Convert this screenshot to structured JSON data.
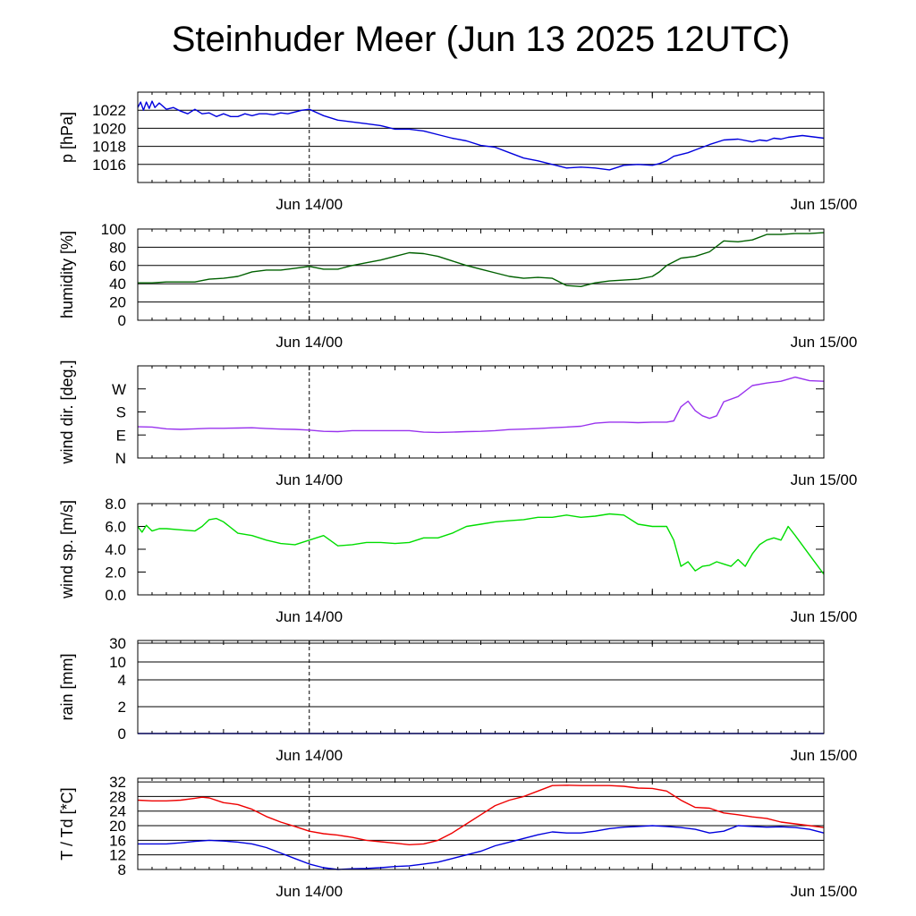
{
  "title": "Steinhuder Meer (Jun 13 2025 12UTC)",
  "chart_data": [
    {
      "type": "line",
      "ylabel": "p [hPa]",
      "ylim": [
        1014,
        1024
      ],
      "yticks": [
        1016,
        1018,
        1020,
        1022
      ],
      "ytick_labels": [
        "1016",
        "1018",
        "1020",
        "1022"
      ],
      "xtick_labels": [
        "Jun 14/00",
        "Jun 15/00"
      ],
      "grid": true,
      "series": [
        {
          "color": "#0000dd",
          "x": [
            0,
            0.2,
            0.4,
            0.6,
            0.8,
            1,
            1.2,
            1.5,
            2,
            2.5,
            3,
            3.5,
            4,
            4.5,
            5,
            5.5,
            6,
            6.5,
            7,
            7.5,
            8,
            8.5,
            9,
            9.5,
            10,
            10.5,
            11,
            11.5,
            12,
            13,
            14,
            15,
            16,
            17,
            18,
            19,
            20,
            21,
            22,
            23,
            24,
            25,
            26,
            27,
            28,
            29,
            30,
            31,
            32,
            33,
            34,
            35,
            36,
            36.5,
            37,
            37.5,
            38,
            38.5,
            39,
            40,
            41,
            42,
            43,
            43.5,
            44,
            44.5,
            45,
            45.5,
            46,
            46.5,
            47,
            47.5,
            48
          ],
          "y": [
            1022.3,
            1022.9,
            1022.0,
            1022.9,
            1022.2,
            1023.0,
            1022.3,
            1022.8,
            1022.1,
            1022.3,
            1021.9,
            1021.6,
            1022.1,
            1021.6,
            1021.7,
            1021.3,
            1021.6,
            1021.3,
            1021.3,
            1021.6,
            1021.4,
            1021.6,
            1021.6,
            1021.5,
            1021.7,
            1021.6,
            1021.8,
            1022.0,
            1022.1,
            1021.4,
            1020.9,
            1020.7,
            1020.5,
            1020.3,
            1019.9,
            1019.9,
            1019.7,
            1019.3,
            1018.9,
            1018.6,
            1018.1,
            1017.9,
            1017.3,
            1016.7,
            1016.4,
            1016.0,
            1015.6,
            1015.7,
            1015.6,
            1015.4,
            1015.9,
            1016.0,
            1015.9,
            1016.1,
            1016.4,
            1016.9,
            1017.1,
            1017.3,
            1017.6,
            1018.2,
            1018.7,
            1018.8,
            1018.5,
            1018.7,
            1018.6,
            1018.9,
            1018.8,
            1019.0,
            1019.1,
            1019.2,
            1019.1,
            1019.0,
            1018.9
          ]
        }
      ]
    },
    {
      "type": "line",
      "ylabel": "humidity [%]",
      "ylim": [
        0,
        100
      ],
      "yticks": [
        0,
        20,
        40,
        60,
        80,
        100
      ],
      "ytick_labels": [
        "0",
        "20",
        "40",
        "60",
        "80",
        "100"
      ],
      "xtick_labels": [
        "Jun 14/00",
        "Jun 15/00"
      ],
      "grid": true,
      "series": [
        {
          "color": "#006000",
          "x": [
            0,
            1,
            2,
            3,
            4,
            5,
            6,
            7,
            8,
            9,
            10,
            11,
            12,
            13,
            14,
            15,
            16,
            17,
            18,
            19,
            20,
            21,
            22,
            23,
            24,
            25,
            26,
            27,
            28,
            29,
            30,
            31,
            32,
            33,
            34,
            35,
            36,
            36.5,
            37,
            38,
            39,
            40,
            41,
            42,
            43,
            44,
            45,
            46,
            47,
            48
          ],
          "y": [
            41,
            41,
            42,
            42,
            42,
            45,
            46,
            48,
            53,
            55,
            55,
            57,
            59,
            56,
            56,
            60,
            63,
            66,
            70,
            74,
            73,
            70,
            65,
            60,
            56,
            52,
            48,
            46,
            47,
            46,
            38,
            37,
            41,
            43,
            44,
            45,
            48,
            53,
            60,
            68,
            70,
            75,
            87,
            86,
            88,
            94,
            94,
            95,
            95,
            96
          ]
        }
      ]
    },
    {
      "type": "line",
      "ylabel": "wind dir. [deg.]",
      "ylim": [
        0,
        360
      ],
      "yticks": [
        0,
        90,
        180,
        270
      ],
      "ytick_labels": [
        "N",
        "E",
        "S",
        "W"
      ],
      "xtick_labels": [
        "Jun 14/00",
        "Jun 15/00"
      ],
      "grid": false,
      "series": [
        {
          "color": "#9933ee",
          "x": [
            0,
            1,
            2,
            3,
            4,
            5,
            6,
            7,
            8,
            9,
            10,
            11,
            12,
            13,
            14,
            15,
            16,
            17,
            18,
            19,
            20,
            21,
            22,
            23,
            24,
            25,
            26,
            27,
            28,
            29,
            30,
            31,
            32,
            33,
            34,
            35,
            36,
            36.5,
            37,
            37.5,
            38,
            38.5,
            39,
            39.5,
            40,
            40.5,
            41,
            42,
            43,
            44,
            45,
            46,
            47,
            48
          ],
          "y": [
            122,
            121,
            114,
            112,
            114,
            116,
            116,
            117,
            118,
            115,
            113,
            112,
            109,
            104,
            103,
            107,
            107,
            107,
            107,
            107,
            101,
            100,
            101,
            103,
            104,
            107,
            111,
            113,
            115,
            118,
            121,
            124,
            136,
            140,
            140,
            138,
            140,
            140,
            140,
            145,
            200,
            222,
            185,
            165,
            155,
            165,
            220,
            240,
            283,
            293,
            300,
            316,
            302,
            300
          ]
        }
      ]
    },
    {
      "type": "line",
      "ylabel": "wind sp. [m/s]",
      "ylim": [
        0,
        8
      ],
      "yticks": [
        0,
        2,
        4,
        6,
        8
      ],
      "ytick_labels": [
        "0.0",
        "2.0",
        "4.0",
        "6.0",
        "8.0"
      ],
      "xtick_labels": [
        "Jun 14/00",
        "Jun 15/00"
      ],
      "grid": false,
      "series": [
        {
          "color": "#00dd00",
          "x": [
            0,
            0.3,
            0.6,
            1,
            1.5,
            2,
            3,
            4,
            4.5,
            5,
            5.5,
            6,
            7,
            8,
            9,
            10,
            11,
            12,
            13,
            14,
            15,
            16,
            17,
            18,
            19,
            20,
            21,
            22,
            23,
            24,
            25,
            26,
            27,
            28,
            29,
            30,
            31,
            32,
            33,
            34,
            35,
            36,
            37,
            37.5,
            38,
            38.5,
            39,
            39.5,
            40,
            40.5,
            41,
            41.5,
            42,
            42.5,
            43,
            43.5,
            44,
            44.5,
            45,
            45.5,
            46,
            47,
            48
          ],
          "y": [
            6.0,
            5.5,
            6.1,
            5.6,
            5.8,
            5.8,
            5.7,
            5.6,
            6.0,
            6.6,
            6.7,
            6.4,
            5.4,
            5.2,
            4.8,
            4.5,
            4.4,
            4.8,
            5.2,
            4.3,
            4.4,
            4.6,
            4.6,
            4.5,
            4.6,
            5.0,
            5.0,
            5.4,
            6.0,
            6.2,
            6.4,
            6.5,
            6.6,
            6.8,
            6.8,
            7.0,
            6.8,
            6.9,
            7.1,
            7.0,
            6.2,
            6.0,
            6.0,
            4.8,
            2.5,
            2.9,
            2.1,
            2.5,
            2.6,
            2.9,
            2.7,
            2.5,
            3.1,
            2.5,
            3.6,
            4.4,
            4.8,
            5.0,
            4.8,
            6.0,
            5.2,
            3.5,
            1.8
          ]
        }
      ]
    },
    {
      "type": "line",
      "ylabel": "rain [mm]",
      "ylim": [
        0,
        30
      ],
      "yticks": [
        0,
        2,
        4,
        10,
        30
      ],
      "ytick_labels": [
        "0",
        "2",
        "4",
        "10",
        "30"
      ],
      "xtick_labels": [
        "Jun 14/00",
        "Jun 15/00"
      ],
      "grid": true,
      "series": [
        {
          "color": "#0000ff",
          "x": [
            0,
            48
          ],
          "y": [
            0,
            0
          ]
        }
      ]
    },
    {
      "type": "line",
      "ylabel": "T / Td [*C]",
      "ylim": [
        8,
        33
      ],
      "yticks": [
        8,
        12,
        16,
        20,
        24,
        28,
        32
      ],
      "ytick_labels": [
        "8",
        "12",
        "16",
        "20",
        "24",
        "28",
        "32"
      ],
      "xtick_labels": [
        "Jun 14/00",
        "Jun 15/00"
      ],
      "grid": true,
      "series": [
        {
          "color": "#ee0000",
          "x": [
            0,
            1,
            2,
            3,
            4,
            4.5,
            5,
            6,
            7,
            8,
            9,
            10,
            11,
            12,
            13,
            14,
            15,
            16,
            17,
            18,
            19,
            20,
            21,
            22,
            23,
            24,
            25,
            26,
            27,
            28,
            29,
            30,
            31,
            32,
            33,
            34,
            35,
            36,
            37,
            38,
            39,
            40,
            41,
            42,
            43,
            44,
            45,
            46,
            47,
            48
          ],
          "y": [
            27,
            26.8,
            26.8,
            27,
            27.5,
            27.8,
            27.6,
            26.3,
            25.8,
            24.5,
            22.5,
            21.0,
            19.8,
            18.5,
            17.8,
            17.4,
            16.8,
            16.0,
            15.6,
            15.2,
            14.8,
            15.0,
            16.0,
            18.0,
            20.5,
            23.0,
            25.5,
            27.0,
            28.0,
            29.5,
            31.0,
            31.1,
            31.0,
            31.0,
            31.0,
            30.8,
            30.3,
            30.2,
            29.5,
            27.0,
            25.0,
            24.8,
            23.5,
            23.0,
            22.4,
            22.0,
            21.0,
            20.5,
            20.0,
            19.5
          ]
        },
        {
          "color": "#0000dd",
          "x": [
            0,
            1,
            2,
            3,
            4,
            5,
            6,
            7,
            8,
            9,
            10,
            11,
            12,
            13,
            14,
            15,
            16,
            17,
            18,
            19,
            20,
            21,
            22,
            23,
            24,
            25,
            26,
            27,
            28,
            29,
            30,
            31,
            32,
            33,
            34,
            35,
            36,
            37,
            38,
            39,
            40,
            41,
            42,
            43,
            44,
            45,
            46,
            47,
            48
          ],
          "y": [
            15.0,
            15.0,
            15.0,
            15.3,
            15.7,
            16.0,
            15.8,
            15.5,
            15.0,
            14.0,
            12.5,
            11.0,
            9.5,
            8.5,
            8.0,
            8.2,
            8.3,
            8.5,
            8.8,
            9.0,
            9.5,
            10.0,
            11.0,
            12.0,
            13.0,
            14.5,
            15.5,
            16.5,
            17.5,
            18.3,
            18.0,
            18.0,
            18.5,
            19.2,
            19.6,
            19.8,
            20.0,
            19.8,
            19.5,
            19.0,
            18.0,
            18.5,
            20.0,
            19.8,
            19.6,
            19.7,
            19.5,
            19.0,
            18.0
          ]
        }
      ]
    }
  ]
}
